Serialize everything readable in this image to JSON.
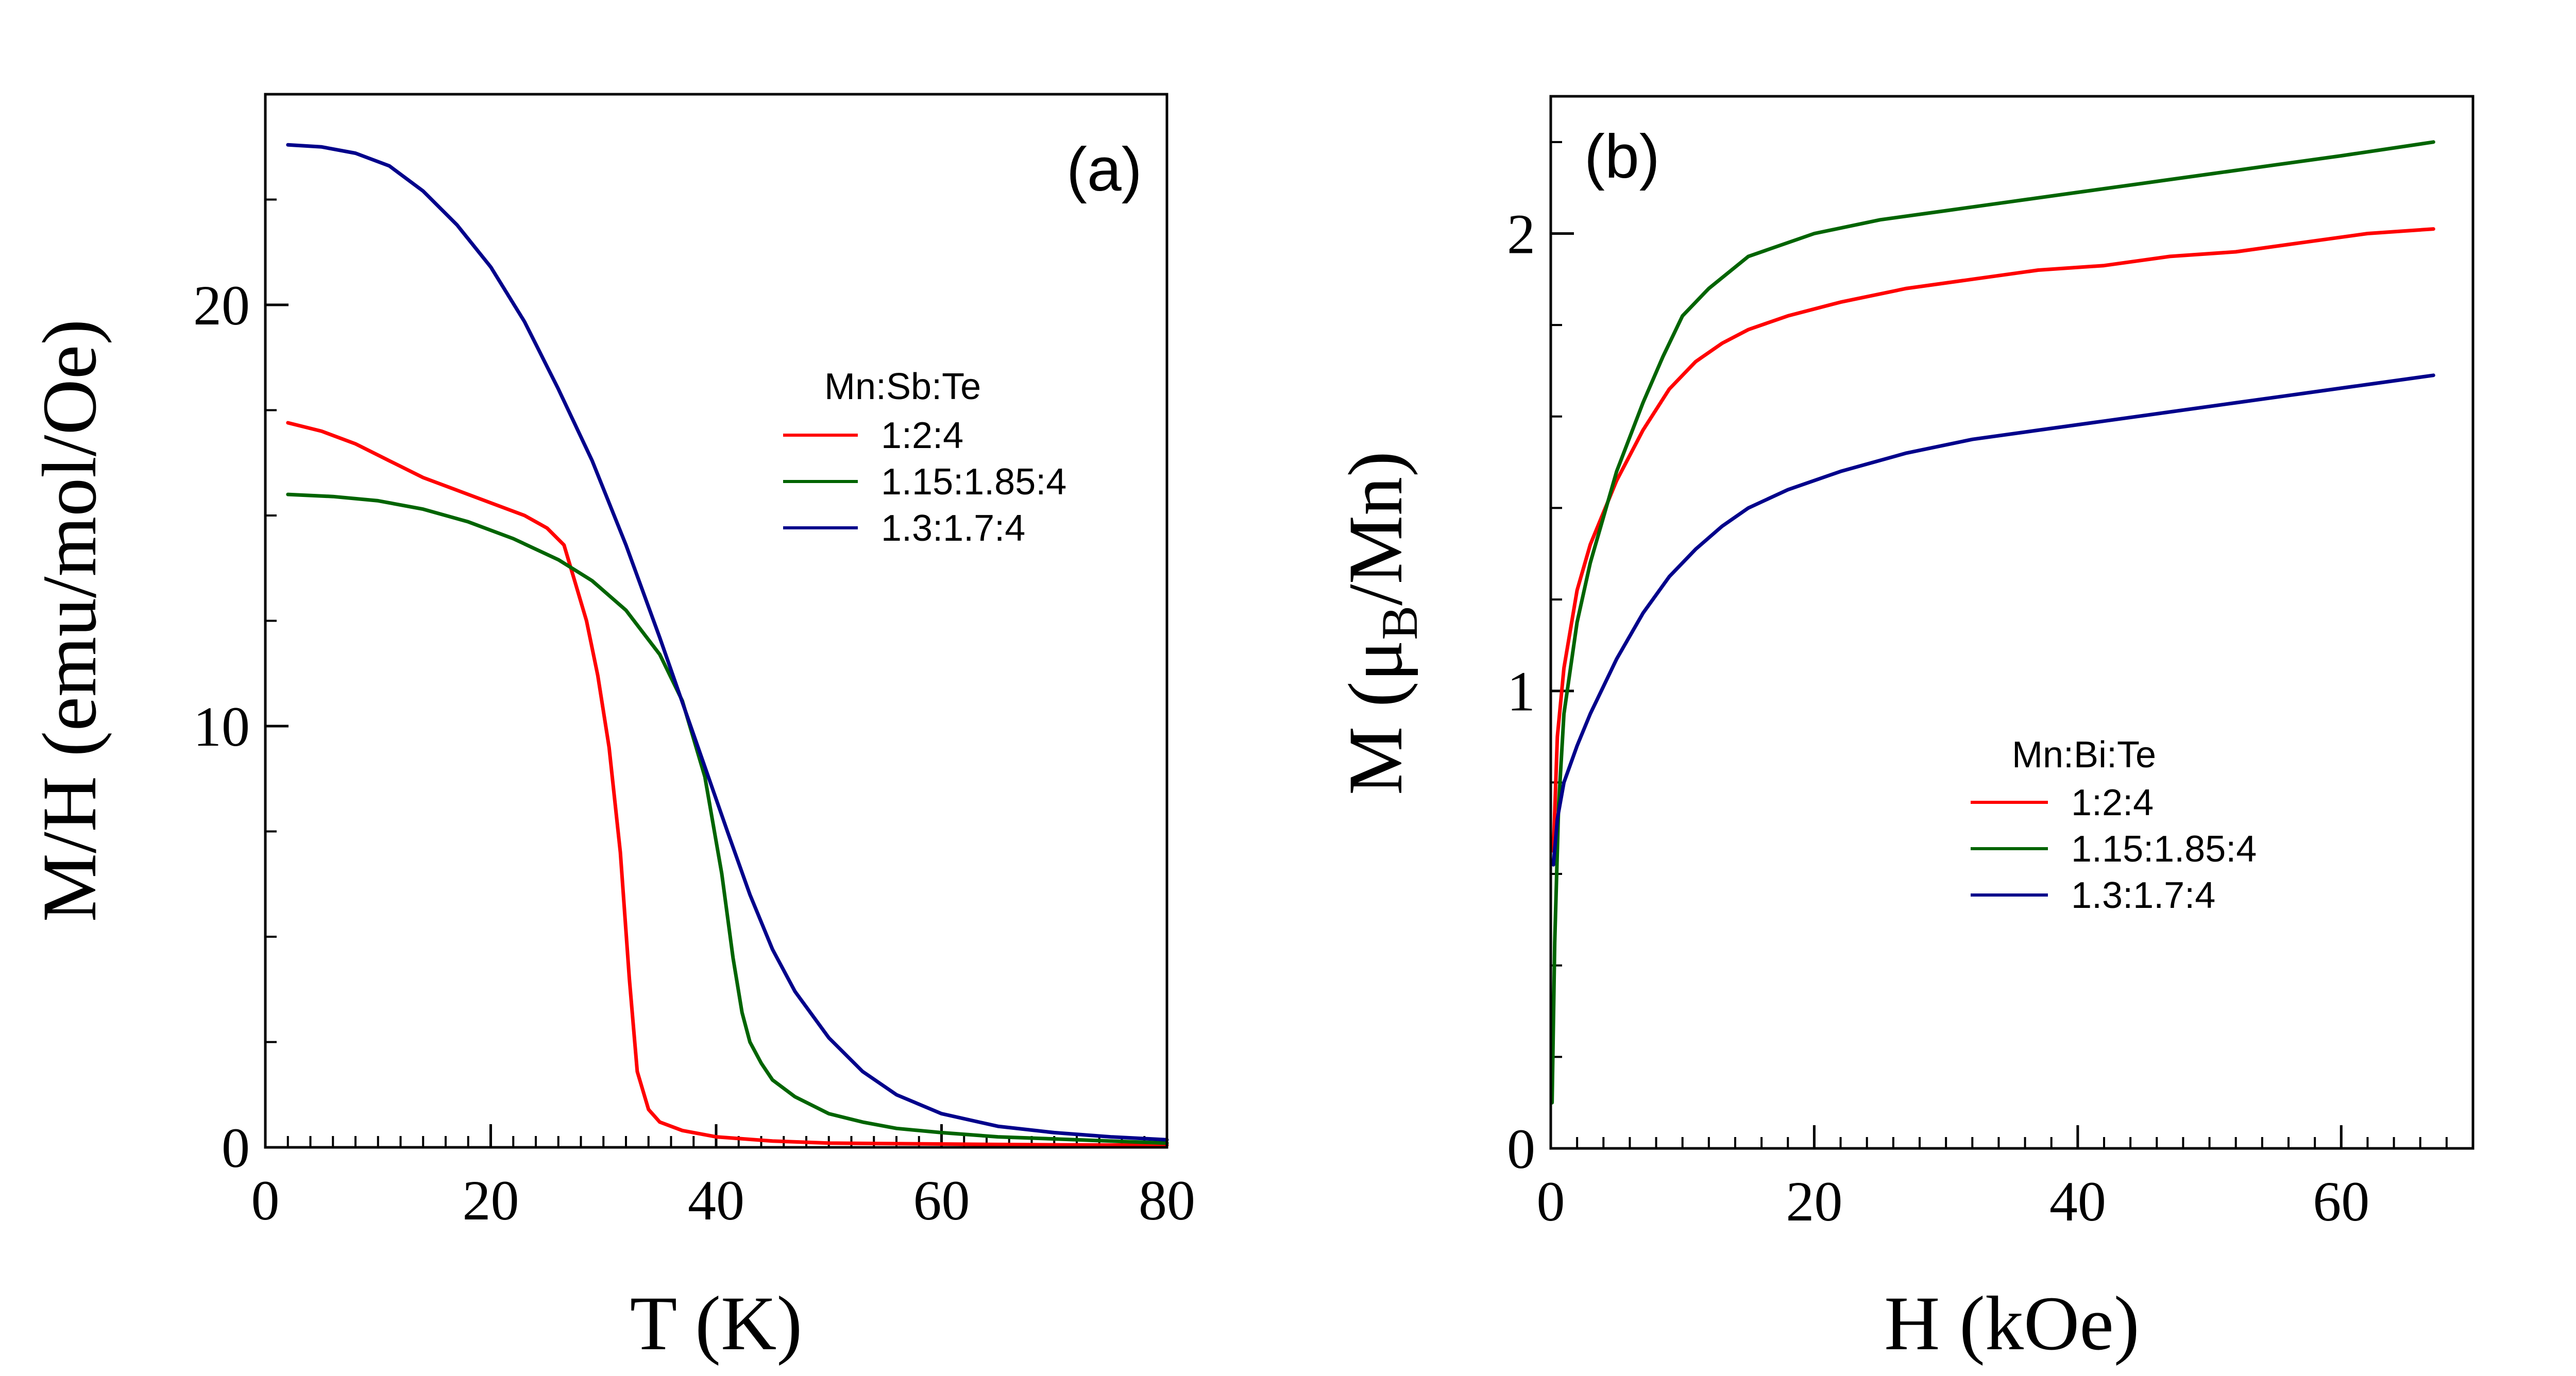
{
  "chart_data": [
    {
      "type": "line",
      "panel_label": "(a)",
      "xlabel": "T (K)",
      "ylabel": "M/H (emu/mol/Oe)",
      "xlim": [
        0,
        80
      ],
      "ylim": [
        0,
        25
      ],
      "xticks": [
        0,
        20,
        40,
        60,
        80
      ],
      "yticks": [
        0,
        10,
        20
      ],
      "x_minor_step": 2,
      "y_minor_step": 2.5,
      "legend": {
        "title": "Mn:Sb:Te",
        "position": "center-right"
      },
      "series": [
        {
          "name": "1:2:4",
          "color": "#ff0000",
          "x": [
            2,
            5,
            8,
            11,
            14,
            17,
            20,
            23,
            25,
            26.5,
            27.5,
            28.5,
            29.5,
            30.5,
            31.5,
            32.3,
            33,
            34,
            35,
            37,
            40,
            45,
            50,
            60,
            70,
            80
          ],
          "y": [
            17.2,
            17.0,
            16.7,
            16.3,
            15.9,
            15.6,
            15.3,
            15.0,
            14.7,
            14.3,
            13.4,
            12.5,
            11.2,
            9.5,
            7.0,
            4.0,
            1.8,
            0.9,
            0.6,
            0.4,
            0.25,
            0.15,
            0.1,
            0.08,
            0.06,
            0.05
          ]
        },
        {
          "name": "1.15:1.85:4",
          "color": "#006400",
          "x": [
            2,
            6,
            10,
            14,
            18,
            22,
            26,
            29,
            32,
            35,
            37,
            39,
            40.5,
            41.5,
            42.3,
            43,
            44,
            45,
            47,
            50,
            53,
            56,
            60,
            65,
            70,
            75,
            80
          ],
          "y": [
            15.5,
            15.45,
            15.35,
            15.15,
            14.85,
            14.45,
            13.95,
            13.45,
            12.75,
            11.7,
            10.6,
            8.8,
            6.5,
            4.5,
            3.2,
            2.5,
            2.0,
            1.6,
            1.2,
            0.8,
            0.6,
            0.45,
            0.35,
            0.25,
            0.2,
            0.15,
            0.1
          ]
        },
        {
          "name": "1.3:1.7:4",
          "color": "#00008b",
          "x": [
            2,
            5,
            8,
            11,
            14,
            17,
            20,
            23,
            26,
            29,
            32,
            35,
            38,
            41,
            43,
            45,
            47,
            50,
            53,
            56,
            60,
            65,
            70,
            75,
            80
          ],
          "y": [
            23.8,
            23.75,
            23.6,
            23.3,
            22.7,
            21.9,
            20.9,
            19.6,
            18.0,
            16.3,
            14.3,
            12.1,
            9.8,
            7.5,
            6.0,
            4.7,
            3.7,
            2.6,
            1.8,
            1.25,
            0.8,
            0.5,
            0.35,
            0.25,
            0.18
          ]
        }
      ]
    },
    {
      "type": "line",
      "panel_label": "(b)",
      "xlabel": "H (kOe)",
      "ylabel_main": "M (μ",
      "ylabel_sub": "B",
      "ylabel_end": "/Mn)",
      "xlim": [
        0,
        70
      ],
      "ylim": [
        0,
        2.3
      ],
      "xticks": [
        0,
        20,
        40,
        60
      ],
      "yticks": [
        0,
        1,
        2
      ],
      "x_minor_step": 2,
      "y_minor_step": 0.2,
      "legend": {
        "title": "Mn:Bi:Te",
        "position": "center-right"
      },
      "series": [
        {
          "name": "1:2:4",
          "color": "#ff0000",
          "x": [
            0.2,
            0.5,
            1,
            2,
            3,
            5,
            7,
            9,
            11,
            13,
            15,
            18,
            22,
            27,
            32,
            37,
            42,
            47,
            52,
            57,
            62,
            67
          ],
          "y": [
            0.65,
            0.9,
            1.05,
            1.22,
            1.32,
            1.46,
            1.57,
            1.66,
            1.72,
            1.76,
            1.79,
            1.82,
            1.85,
            1.88,
            1.9,
            1.92,
            1.93,
            1.95,
            1.96,
            1.98,
            2.0,
            2.01
          ]
        },
        {
          "name": "1.15:1.85:4",
          "color": "#006400",
          "x": [
            0.1,
            0.3,
            0.6,
            1,
            2,
            3,
            5,
            7,
            8.5,
            10,
            12,
            15,
            20,
            25,
            30,
            35,
            40,
            45,
            50,
            55,
            60,
            67
          ],
          "y": [
            0.1,
            0.45,
            0.75,
            0.95,
            1.15,
            1.28,
            1.48,
            1.63,
            1.73,
            1.82,
            1.88,
            1.95,
            2.0,
            2.03,
            2.05,
            2.07,
            2.09,
            2.11,
            2.13,
            2.15,
            2.17,
            2.2
          ]
        },
        {
          "name": "1.3:1.7:4",
          "color": "#00008b",
          "x": [
            0.2,
            0.5,
            1,
            2,
            3,
            5,
            7,
            9,
            11,
            13,
            15,
            18,
            22,
            27,
            32,
            37,
            42,
            47,
            52,
            57,
            62,
            67
          ],
          "y": [
            0.62,
            0.72,
            0.8,
            0.88,
            0.95,
            1.07,
            1.17,
            1.25,
            1.31,
            1.36,
            1.4,
            1.44,
            1.48,
            1.52,
            1.55,
            1.57,
            1.59,
            1.61,
            1.63,
            1.65,
            1.67,
            1.69
          ]
        }
      ]
    }
  ]
}
